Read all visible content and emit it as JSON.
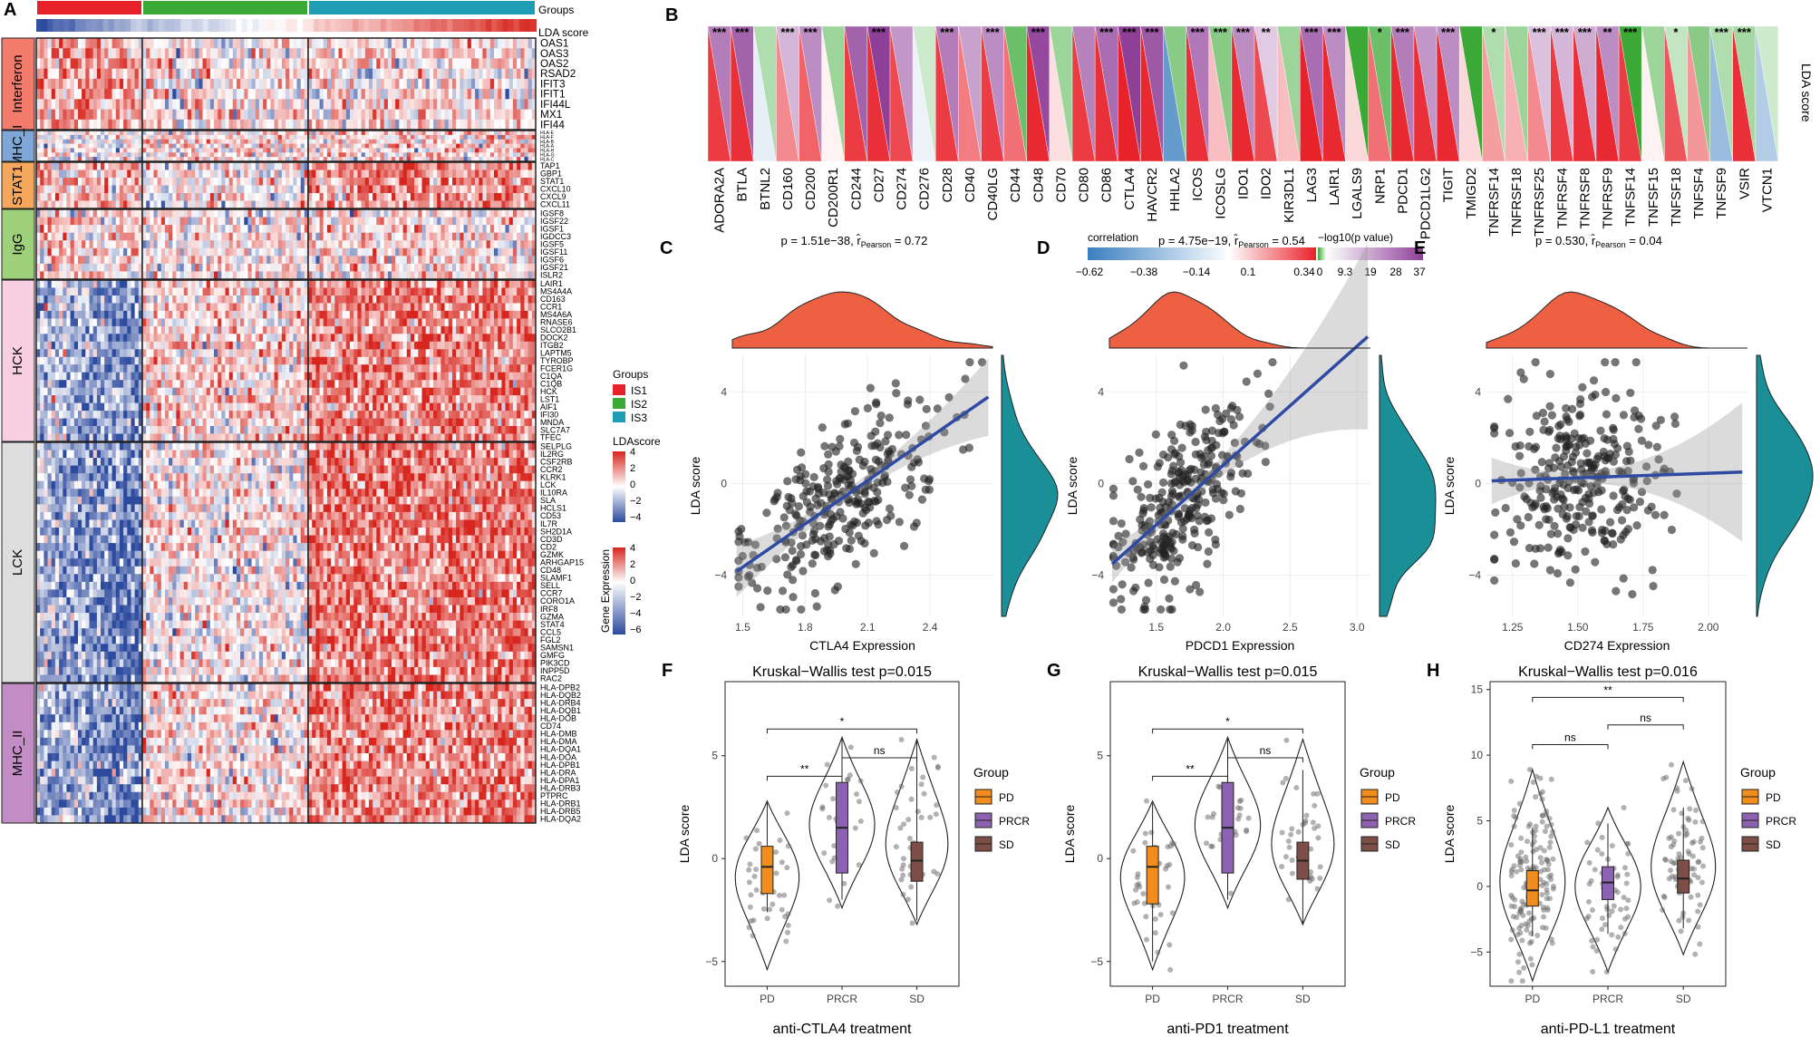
{
  "colors": {
    "IS1": "#e8222b",
    "IS2": "#3aa935",
    "IS3": "#1f9db4",
    "heat_hi": "#d7261e",
    "heat_lo": "#2c4a9e",
    "heat_mid": "#ffffff",
    "pos": "#e8222b",
    "neg": "#3a7ec0",
    "sig_hi": "#8e3f98",
    "sig_lo": "#3aa935",
    "density": "#ee6042",
    "density2": "#1a8f98",
    "reg": "#2e4aa3",
    "PD": "#f28c1c",
    "PRCR": "#8e62b3",
    "SD": "#7d4e45",
    "module_colors": [
      "#f47c6c",
      "#7ea7d8",
      "#f5a85c",
      "#9fd07a",
      "#f7cfe0",
      "#dedede",
      "#c28cc4"
    ]
  },
  "panel_labels": [
    "A",
    "B",
    "C",
    "D",
    "E",
    "F",
    "G",
    "H"
  ],
  "panelA": {
    "groups_label": "Groups",
    "lda_label": "LDA score",
    "group_names": [
      "IS1",
      "IS2",
      "IS3"
    ],
    "modules": [
      {
        "name": "Interferon",
        "genes": [
          "OAS1",
          "OAS3",
          "OAS2",
          "RSAD2",
          "IFIT3",
          "IFIT1",
          "IFI44L",
          "MX1",
          "IFI44"
        ]
      },
      {
        "name": "MHC_I",
        "genes": [
          "HLA-E",
          "HLA-F",
          "HLA-B",
          "HLA-A",
          "HLA-H",
          "HLA-G",
          "HLA-C"
        ]
      },
      {
        "name": "STAT1",
        "genes": [
          "TAP1",
          "GBP1",
          "STAT1",
          "CXCL10",
          "CXCL9",
          "CXCL11"
        ]
      },
      {
        "name": "IgG",
        "genes": [
          "IGSF8",
          "IGSF22",
          "IGSF1",
          "IGDCC3",
          "IGSF5",
          "IGSF11",
          "IGSF6",
          "IGSF21",
          "ISLR2"
        ]
      },
      {
        "name": "HCK",
        "genes": [
          "LAIR1",
          "MS4A4A",
          "CD163",
          "CCR1",
          "MS4A6A",
          "RNASE6",
          "SLCO2B1",
          "DOCK2",
          "ITGB2",
          "LAPTM5",
          "TYROBP",
          "FCER1G",
          "C1QA",
          "C1QB",
          "HCK",
          "LST1",
          "AIF1",
          "IFI30",
          "MNDA",
          "SLC7A7",
          "TFEC"
        ]
      },
      {
        "name": "LCK",
        "genes": [
          "SELPLG",
          "IL2RG",
          "CSF2RB",
          "CCR2",
          "KLRK1",
          "LCK",
          "IL10RA",
          "SLA",
          "HCLS1",
          "CD53",
          "IL7R",
          "SH2D1A",
          "CD3D",
          "CD2",
          "GZMK",
          "ARHGAP15",
          "CD48",
          "SLAMF1",
          "SELL",
          "CCR7",
          "CORO1A",
          "IRF8",
          "GZMA",
          "STAT4",
          "CCL5",
          "FGL2",
          "SAMSN1",
          "GMFG",
          "PIK3CD",
          "INPP5D",
          "RAC2"
        ]
      },
      {
        "name": "MHC_II",
        "genes": [
          "HLA-DPB2",
          "HLA-DQB2",
          "HLA-DRB4",
          "HLA-DQB1",
          "HLA-DOB",
          "CD74",
          "HLA-DMB",
          "HLA-DMA",
          "HLA-DQA1",
          "HLA-DOA",
          "HLA-DPB1",
          "HLA-DRA",
          "HLA-DPA1",
          "HLA-DRB3",
          "PTPRC",
          "HLA-DRB1",
          "HLA-DRB5",
          "HLA-DQA2"
        ]
      }
    ],
    "legend": {
      "groups_title": "Groups",
      "groups": [
        "IS1",
        "IS2",
        "IS3"
      ],
      "lda_title": "LDAscore",
      "lda_ticks": [
        "4",
        "2",
        "0",
        "−2",
        "−4"
      ],
      "expr_title": "Gene Expression",
      "expr_ticks": [
        "4",
        "2",
        "0",
        "−2",
        "−4",
        "−6"
      ]
    }
  },
  "panelB": {
    "axis_title": "LDA score",
    "genes": [
      "ADORA2A",
      "BTLA",
      "BTNL2",
      "CD160",
      "CD200",
      "CD200R1",
      "CD244",
      "CD27",
      "CD274",
      "CD276",
      "CD28",
      "CD40",
      "CD40LG",
      "CD44",
      "CD48",
      "CD70",
      "CD80",
      "CD86",
      "CTLA4",
      "HAVCR2",
      "HHLA2",
      "ICOS",
      "ICOSLG",
      "IDO1",
      "IDO2",
      "KIR3DL1",
      "LAG3",
      "LAIR1",
      "LGALS9",
      "NRP1",
      "PDCD1",
      "PDCD1LG2",
      "TIGIT",
      "TMIGD2",
      "TNFRSF14",
      "TNFRSF18",
      "TNFRSF25",
      "TNFRSF4",
      "TNFRSF8",
      "TNFRSF9",
      "TNFSF14",
      "TNFSF15",
      "TNFSF18",
      "TNFSF4",
      "TNFSF9",
      "VSIR",
      "VTCN1"
    ],
    "correlation": [
      0.3,
      0.32,
      -0.05,
      0.18,
      0.24,
      0.02,
      0.3,
      0.32,
      0.28,
      -0.04,
      0.3,
      0.2,
      0.3,
      0.22,
      0.33,
      0.05,
      0.3,
      0.32,
      0.34,
      0.33,
      -0.3,
      0.32,
      0.1,
      0.33,
      0.28,
      0.1,
      0.34,
      0.33,
      0.06,
      0.22,
      0.33,
      0.32,
      0.33,
      0.06,
      0.15,
      0.12,
      0.18,
      0.3,
      0.32,
      0.33,
      0.3,
      0.02,
      0.26,
      0.16,
      -0.2,
      0.32,
      -0.15
    ],
    "neglog10p": [
      25,
      30,
      -8,
      14,
      22,
      -10,
      30,
      37,
      20,
      -5,
      25,
      18,
      22,
      -15,
      35,
      -10,
      24,
      28,
      37,
      32,
      -12,
      26,
      -12,
      22,
      10,
      -10,
      28,
      22,
      -20,
      -15,
      25,
      20,
      22,
      -20,
      -8,
      -10,
      12,
      14,
      16,
      22,
      -20,
      -10,
      -6,
      -12,
      -8,
      -9,
      -5
    ],
    "stars": [
      "***",
      "***",
      "",
      "***",
      "***",
      "",
      "",
      "***",
      "",
      "",
      "***",
      "",
      "***",
      "",
      "***",
      "",
      "",
      "***",
      "***",
      "***",
      "",
      "***",
      "***",
      "***",
      "**",
      "",
      "***",
      "***",
      "",
      "*",
      "***",
      "",
      "***",
      "",
      "*",
      "",
      "***",
      "***",
      "***",
      "**",
      "***",
      "",
      "*",
      "",
      "***",
      "***",
      ""
    ],
    "legend_corr": {
      "title": "correlation",
      "ticks": [
        "−0.62",
        "−0.38",
        "−0.14",
        "0.1",
        "0.34"
      ]
    },
    "legend_p": {
      "title": "−log10(p value)",
      "ticks": [
        "0",
        "9.3",
        "19",
        "28",
        "37"
      ]
    }
  },
  "chart_data": [
    {
      "panel": "C",
      "type": "scatter",
      "title_p": "p = 1.51e−38, ",
      "title_r": "r̂",
      "title_rsub": "Pearson",
      "title_v": " = 0.72",
      "xlabel": "CTLA4 Expression",
      "ylabel": "LDA score",
      "xlim": [
        1.45,
        2.7
      ],
      "ylim": [
        -5.8,
        5.6
      ],
      "xticks": [
        1.5,
        1.8,
        2.1,
        2.4
      ],
      "xtick_labels": [
        "1.5",
        "1.8",
        "2.1",
        "2.4"
      ],
      "yticks": [
        -4,
        0,
        4
      ],
      "ytick_labels": [
        "−4",
        "0",
        "4"
      ],
      "n": 300,
      "slope": 6.3,
      "intercept": -13.1,
      "noise": 1.6,
      "xmean": 2.0,
      "xsd": 0.24
    },
    {
      "panel": "D",
      "type": "scatter",
      "title_p": "p = 4.75e−19, ",
      "title_r": "r̂",
      "title_rsub": "Pearson",
      "title_v": " = 0.54",
      "xlabel": "PDCD1 Expression",
      "ylabel": "LDA score",
      "xlim": [
        1.15,
        3.1
      ],
      "ylim": [
        -5.8,
        5.6
      ],
      "xticks": [
        1.5,
        2.0,
        2.5,
        3.0
      ],
      "xtick_labels": [
        "1.5",
        "2.0",
        "2.5",
        "3.0"
      ],
      "yticks": [
        -4,
        0,
        4
      ],
      "ytick_labels": [
        "−4",
        "0",
        "4"
      ],
      "n": 300,
      "slope": 5.2,
      "intercept": -9.6,
      "noise": 1.7,
      "xmean": 1.7,
      "xsd": 0.3
    },
    {
      "panel": "E",
      "type": "scatter",
      "title_p": "p = 0.530, ",
      "title_r": "r̂",
      "title_rsub": "Pearson",
      "title_v": " = 0.04",
      "xlabel": "CD274 Expression",
      "ylabel": "LDA score",
      "xlim": [
        1.15,
        2.15
      ],
      "ylim": [
        -5.8,
        5.6
      ],
      "xticks": [
        1.25,
        1.5,
        1.75,
        2.0
      ],
      "xtick_labels": [
        "1.25",
        "1.50",
        "1.75",
        "2.00"
      ],
      "yticks": [
        -4,
        0,
        4
      ],
      "ytick_labels": [
        "−4",
        "0",
        "4"
      ],
      "n": 300,
      "slope": 0.4,
      "intercept": -0.35,
      "noise": 2.0,
      "xmean": 1.5,
      "xsd": 0.16
    },
    {
      "panel": "F",
      "type": "violin",
      "title": "Kruskal−Wallis test p=0.015",
      "subtitle": "anti-CTLA4 treatment",
      "ylabel": "LDA score",
      "categories": [
        "PD",
        "PRCR",
        "SD"
      ],
      "ylim": [
        -6.2,
        8.6
      ],
      "yticks": [
        -5,
        0,
        5
      ],
      "ytick_labels": [
        "−5",
        "0",
        "5"
      ],
      "box": [
        [
          -2.6,
          -1.7,
          -0.4,
          0.6,
          2.7
        ],
        [
          -2.0,
          -0.7,
          1.5,
          3.7,
          5.8
        ],
        [
          -3.0,
          -1.1,
          -0.1,
          0.8,
          5.7
        ]
      ],
      "range": [
        [
          -5.4,
          2.8
        ],
        [
          -2.4,
          5.9
        ],
        [
          -3.2,
          5.8
        ]
      ],
      "n": [
        40,
        26,
        40
      ],
      "legend_title": "Group",
      "brackets": [
        {
          "a": 0,
          "b": 1,
          "label": "**",
          "y": 4
        },
        {
          "a": 1,
          "b": 2,
          "label": "ns",
          "y": 4.9
        },
        {
          "a": 0,
          "b": 2,
          "label": "*",
          "y": 6.3
        }
      ]
    },
    {
      "panel": "G",
      "type": "violin",
      "title": "Kruskal−Wallis test p=0.015",
      "subtitle": "anti-PD1 treatment",
      "ylabel": "LDA score",
      "categories": [
        "PD",
        "PRCR",
        "SD"
      ],
      "ylim": [
        -6.2,
        8.6
      ],
      "yticks": [
        -5,
        0,
        5
      ],
      "ytick_labels": [
        "−5",
        "0",
        "5"
      ],
      "box": [
        [
          -5.0,
          -2.2,
          -0.4,
          0.6,
          2.7
        ],
        [
          -2.0,
          -0.7,
          1.5,
          3.7,
          5.8
        ],
        [
          -3.2,
          -1.0,
          -0.1,
          0.8,
          4.3
        ]
      ],
      "range": [
        [
          -5.4,
          2.8
        ],
        [
          -2.4,
          5.9
        ],
        [
          -3.2,
          5.8
        ]
      ],
      "n": [
        40,
        26,
        40
      ],
      "legend_title": "Group",
      "brackets": [
        {
          "a": 0,
          "b": 1,
          "label": "**",
          "y": 4
        },
        {
          "a": 1,
          "b": 2,
          "label": "ns",
          "y": 4.9
        },
        {
          "a": 0,
          "b": 2,
          "label": "*",
          "y": 6.3
        }
      ]
    },
    {
      "panel": "H",
      "type": "violin",
      "title": "Kruskal−Wallis test p=0.016",
      "subtitle": "anti-PD-L1 treatment",
      "ylabel": "LDA score",
      "categories": [
        "PD",
        "PRCR",
        "SD"
      ],
      "ylim": [
        -7.6,
        15.6
      ],
      "yticks": [
        -5,
        0,
        5,
        10,
        15
      ],
      "ytick_labels": [
        "−5",
        "0",
        "5",
        "10",
        "15"
      ],
      "box": [
        [
          -3.8,
          -1.5,
          -0.3,
          1.2,
          4.5
        ],
        [
          -3.6,
          -1.0,
          0.3,
          1.5,
          4.8
        ],
        [
          -3.2,
          -0.5,
          0.6,
          2.0,
          6.0
        ]
      ],
      "range": [
        [
          -7.2,
          8.9
        ],
        [
          -6.5,
          6.0
        ],
        [
          -5.2,
          9.5
        ]
      ],
      "n": [
        150,
        60,
        80
      ],
      "legend_title": "Group",
      "brackets": [
        {
          "a": 0,
          "b": 1,
          "label": "ns",
          "y": 10.8
        },
        {
          "a": 1,
          "b": 2,
          "label": "ns",
          "y": 12.3
        },
        {
          "a": 0,
          "b": 2,
          "label": "**",
          "y": 14.4
        }
      ]
    }
  ]
}
